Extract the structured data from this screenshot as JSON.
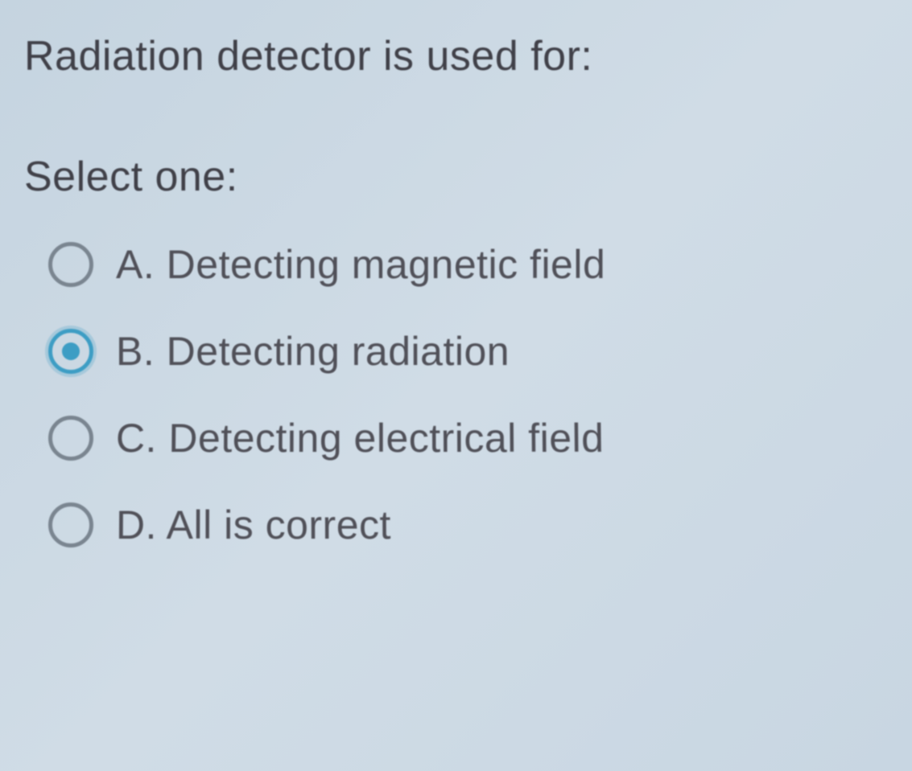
{
  "question": {
    "text": "Radiation detector is used for:",
    "prompt": "Select one:",
    "selected_index": 1,
    "options": [
      {
        "letter": "A.",
        "text": "Detecting magnetic field"
      },
      {
        "letter": "B.",
        "text": "Detecting radiation"
      },
      {
        "letter": "C.",
        "text": "Detecting electrical field"
      },
      {
        "letter": "D.",
        "text": "All is correct"
      }
    ]
  },
  "colors": {
    "background_start": "#c5d4e0",
    "background_end": "#c8d6e2",
    "text_color": "#404048",
    "radio_border": "#7a8590",
    "radio_selected": "#3d9dc4"
  },
  "typography": {
    "question_fontsize": 52,
    "option_fontsize": 50,
    "font_family": "Arial"
  }
}
